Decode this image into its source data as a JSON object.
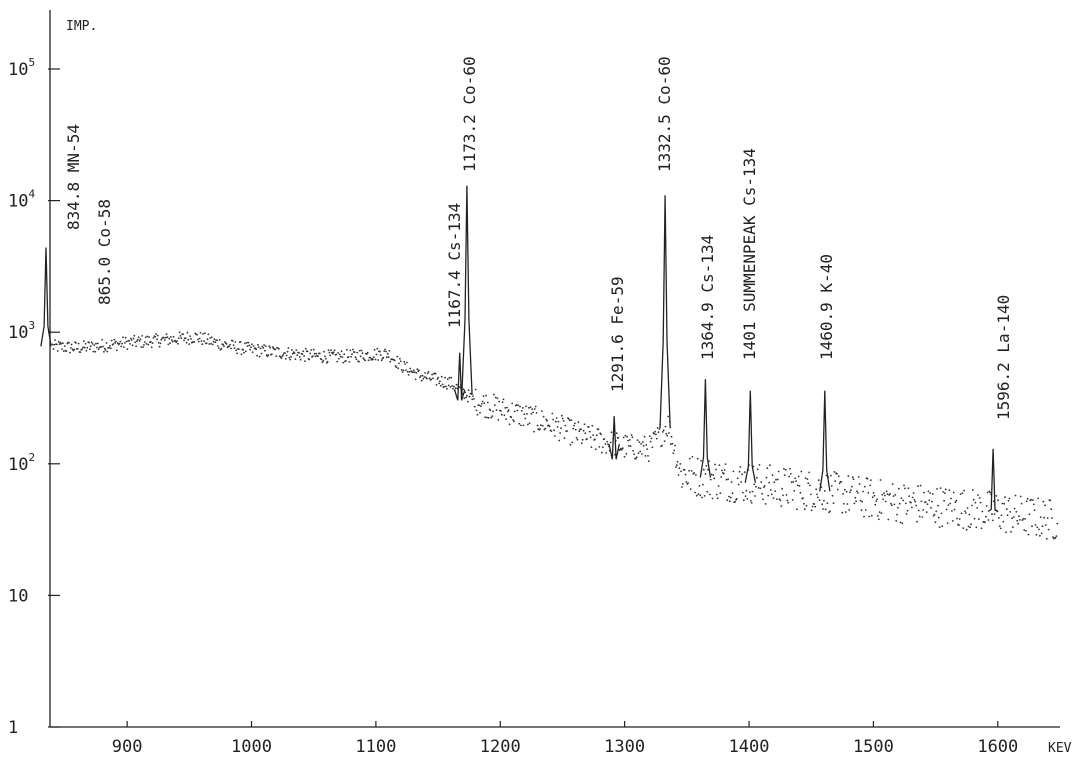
{
  "chart_data": {
    "type": "scatter",
    "title": "",
    "xlabel": "KEV",
    "ylabel": "IMP.",
    "x_scale": "linear",
    "y_scale": "log",
    "xlim": [
      838,
      1650
    ],
    "ylim": [
      1,
      200000
    ],
    "x_ticks": [
      900,
      1000,
      1100,
      1200,
      1300,
      1400,
      1500,
      1600
    ],
    "y_ticks": [
      {
        "value": 1,
        "base": "1",
        "exp": ""
      },
      {
        "value": 10,
        "base": "10",
        "exp": ""
      },
      {
        "value": 100,
        "base": "10",
        "exp": "2"
      },
      {
        "value": 1000,
        "base": "10",
        "exp": "3"
      },
      {
        "value": 10000,
        "base": "10",
        "exp": "4"
      },
      {
        "value": 100000,
        "base": "10",
        "exp": "5"
      }
    ],
    "grid": false,
    "background_continuum": [
      {
        "x": 840,
        "y": 780
      },
      {
        "x": 860,
        "y": 760
      },
      {
        "x": 880,
        "y": 790
      },
      {
        "x": 900,
        "y": 830
      },
      {
        "x": 920,
        "y": 860
      },
      {
        "x": 940,
        "y": 890
      },
      {
        "x": 955,
        "y": 920
      },
      {
        "x": 970,
        "y": 840
      },
      {
        "x": 990,
        "y": 760
      },
      {
        "x": 1010,
        "y": 720
      },
      {
        "x": 1030,
        "y": 690
      },
      {
        "x": 1050,
        "y": 660
      },
      {
        "x": 1070,
        "y": 650
      },
      {
        "x": 1090,
        "y": 670
      },
      {
        "x": 1110,
        "y": 690
      },
      {
        "x": 1120,
        "y": 560
      },
      {
        "x": 1135,
        "y": 470
      },
      {
        "x": 1150,
        "y": 430
      },
      {
        "x": 1160,
        "y": 410
      },
      {
        "x": 1180,
        "y": 300
      },
      {
        "x": 1200,
        "y": 260
      },
      {
        "x": 1220,
        "y": 230
      },
      {
        "x": 1240,
        "y": 200
      },
      {
        "x": 1260,
        "y": 170
      },
      {
        "x": 1280,
        "y": 150
      },
      {
        "x": 1300,
        "y": 135
      },
      {
        "x": 1320,
        "y": 130
      },
      {
        "x": 1335,
        "y": 200
      },
      {
        "x": 1345,
        "y": 85
      },
      {
        "x": 1360,
        "y": 80
      },
      {
        "x": 1380,
        "y": 75
      },
      {
        "x": 1400,
        "y": 72
      },
      {
        "x": 1420,
        "y": 68
      },
      {
        "x": 1440,
        "y": 64
      },
      {
        "x": 1460,
        "y": 62
      },
      {
        "x": 1480,
        "y": 58
      },
      {
        "x": 1500,
        "y": 54
      },
      {
        "x": 1520,
        "y": 51
      },
      {
        "x": 1540,
        "y": 49
      },
      {
        "x": 1560,
        "y": 47
      },
      {
        "x": 1580,
        "y": 45
      },
      {
        "x": 1600,
        "y": 43
      },
      {
        "x": 1620,
        "y": 40
      },
      {
        "x": 1640,
        "y": 38
      },
      {
        "x": 1650,
        "y": 37
      }
    ],
    "peaks": [
      {
        "energy": 834.8,
        "height": 4400,
        "label": "834.8 MN-54"
      },
      {
        "energy": 865.0,
        "height": 0,
        "label": "865.0 Co-58"
      },
      {
        "energy": 1167.4,
        "height": 700,
        "label": "1167.4 Cs-134"
      },
      {
        "energy": 1173.2,
        "height": 13000,
        "label": "1173.2 Co-60"
      },
      {
        "energy": 1291.6,
        "height": 230,
        "label": "1291.6 Fe-59"
      },
      {
        "energy": 1332.5,
        "height": 11000,
        "label": "1332.5 Co-60"
      },
      {
        "energy": 1364.9,
        "height": 440,
        "label": "1364.9 Cs-134"
      },
      {
        "energy": 1401,
        "height": 360,
        "label": "1401 SUMMENPEAK Cs-134"
      },
      {
        "energy": 1460.9,
        "height": 360,
        "label": "1460.9 K-40"
      },
      {
        "energy": 1596.2,
        "height": 130,
        "label": "1596.2 La-140"
      }
    ]
  }
}
